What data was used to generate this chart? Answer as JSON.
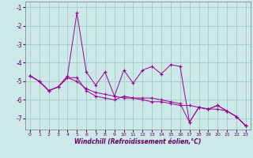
{
  "xlabel": "Windchill (Refroidissement éolien,°C)",
  "background_color": "#cce8e8",
  "grid_color": "#aacccc",
  "line_color": "#990099",
  "x": [
    0,
    1,
    2,
    3,
    4,
    5,
    6,
    7,
    8,
    9,
    10,
    11,
    12,
    13,
    14,
    15,
    16,
    17,
    18,
    19,
    20,
    21,
    22,
    23
  ],
  "series1": [
    -4.7,
    -5.0,
    -5.5,
    -5.3,
    -4.7,
    -1.3,
    -4.5,
    -5.2,
    -4.5,
    -5.8,
    -4.4,
    -5.1,
    -4.4,
    -4.2,
    -4.6,
    -4.1,
    -4.2,
    -7.2,
    -6.4,
    -6.5,
    -6.3,
    -6.6,
    -6.9,
    -7.4
  ],
  "series2": [
    -4.7,
    -5.0,
    -5.5,
    -5.3,
    -4.8,
    -4.8,
    -5.5,
    -5.8,
    -5.9,
    -6.0,
    -5.8,
    -5.9,
    -5.9,
    -5.9,
    -6.0,
    -6.1,
    -6.2,
    -7.2,
    -6.4,
    -6.5,
    -6.3,
    -6.6,
    -6.9,
    -7.4
  ],
  "series3": [
    -4.7,
    -5.0,
    -5.5,
    -5.3,
    -4.8,
    -5.0,
    -5.4,
    -5.6,
    -5.7,
    -5.8,
    -5.9,
    -5.9,
    -6.0,
    -6.1,
    -6.1,
    -6.2,
    -6.3,
    -6.3,
    -6.4,
    -6.5,
    -6.5,
    -6.6,
    -6.9,
    -7.4
  ],
  "ylim": [
    -7.6,
    -0.7
  ],
  "xlim": [
    -0.5,
    23.5
  ],
  "yticks": [
    -7,
    -6,
    -5,
    -4,
    -3,
    -2,
    -1
  ],
  "xticks": [
    0,
    1,
    2,
    3,
    4,
    5,
    6,
    7,
    8,
    9,
    10,
    11,
    12,
    13,
    14,
    15,
    16,
    17,
    18,
    19,
    20,
    21,
    22,
    23
  ]
}
